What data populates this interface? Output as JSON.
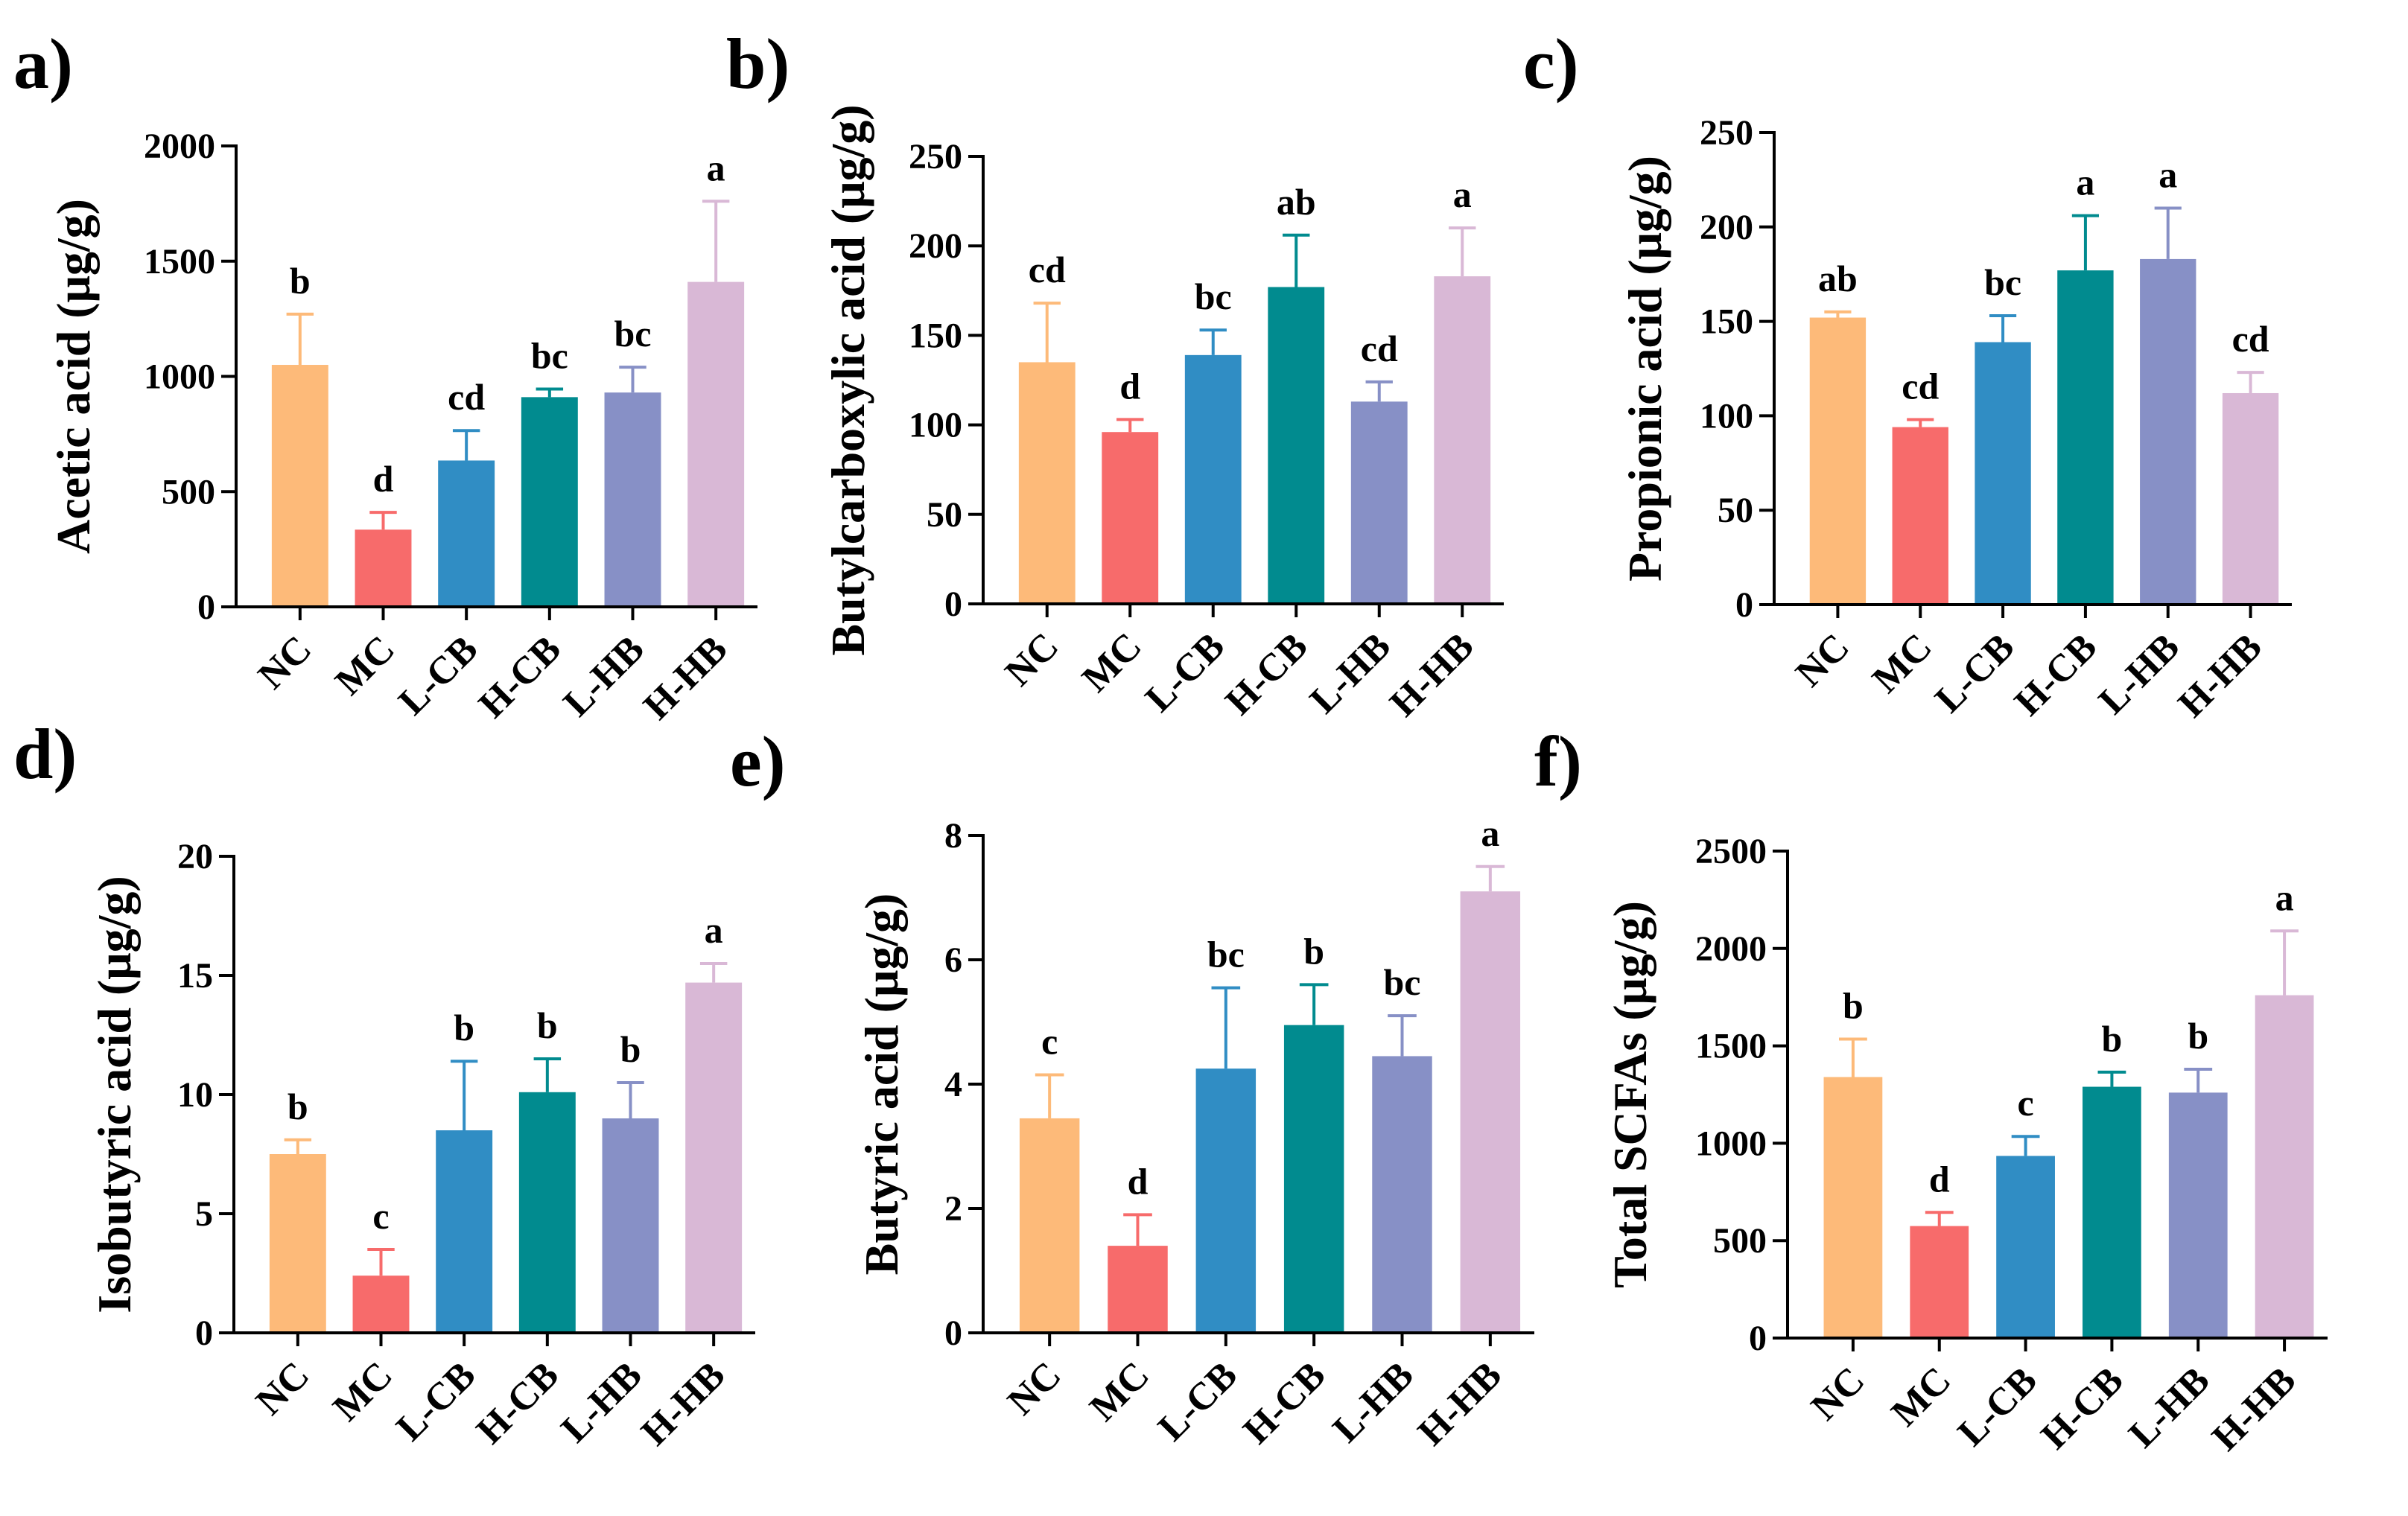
{
  "colors": {
    "NC": "#FDBA79",
    "MC": "#F76B6B",
    "L-CB": "#308DC4",
    "H-CB": "#018B8F",
    "L-HB": "#8790C6",
    "H-HB": "#D9B8D6",
    "axis": "#000000"
  },
  "chart_data": [
    {
      "type": "bar",
      "panel": "a)",
      "ylabel": "Acetic acid (μg/g)",
      "ylim": [
        0,
        2000
      ],
      "yticks": [
        0,
        500,
        1000,
        1500,
        2000
      ],
      "categories": [
        "NC",
        "MC",
        "L-CB",
        "H-CB",
        "L-HB",
        "H-HB"
      ],
      "values": [
        1050,
        335,
        635,
        910,
        930,
        1410
      ],
      "errors": [
        220,
        75,
        130,
        35,
        110,
        350
      ],
      "letters": [
        "b",
        "d",
        "cd",
        "bc",
        "bc",
        "a"
      ]
    },
    {
      "type": "bar",
      "panel": "b)",
      "ylabel": "Butylcarboxylic acid (μg/g)",
      "ylim": [
        0,
        250
      ],
      "yticks": [
        0,
        50,
        100,
        150,
        200,
        250
      ],
      "categories": [
        "NC",
        "MC",
        "L-CB",
        "H-CB",
        "L-HB",
        "H-HB"
      ],
      "values": [
        135,
        96,
        139,
        177,
        113,
        183
      ],
      "errors": [
        33,
        7,
        14,
        29,
        11,
        27
      ],
      "letters": [
        "cd",
        "d",
        "bc",
        "ab",
        "cd",
        "a"
      ]
    },
    {
      "type": "bar",
      "panel": "c)",
      "ylabel": "Propionic acid (μg/g)",
      "ylim": [
        0,
        250
      ],
      "yticks": [
        0,
        50,
        100,
        150,
        200,
        250
      ],
      "categories": [
        "NC",
        "MC",
        "L-CB",
        "H-CB",
        "L-HB",
        "H-HB"
      ],
      "values": [
        152,
        94,
        139,
        177,
        183,
        112
      ],
      "errors": [
        3,
        4,
        14,
        29,
        27,
        11
      ],
      "letters": [
        "ab",
        "cd",
        "bc",
        "a",
        "a",
        "cd"
      ]
    },
    {
      "type": "bar",
      "panel": "d)",
      "ylabel": "Isobutyric acid (μg/g)",
      "ylim": [
        0,
        20
      ],
      "yticks": [
        0,
        5,
        10,
        15,
        20
      ],
      "categories": [
        "NC",
        "MC",
        "L-CB",
        "H-CB",
        "L-HB",
        "H-HB"
      ],
      "values": [
        7.5,
        2.4,
        8.5,
        10.1,
        9.0,
        14.7
      ],
      "errors": [
        0.6,
        1.1,
        2.9,
        1.4,
        1.5,
        0.8
      ],
      "letters": [
        "b",
        "c",
        "b",
        "b",
        "b",
        "a"
      ]
    },
    {
      "type": "bar",
      "panel": "e)",
      "ylabel": "Butyric acid (μg/g)",
      "ylim": [
        0,
        8
      ],
      "yticks": [
        0,
        2,
        4,
        6,
        8
      ],
      "categories": [
        "NC",
        "MC",
        "L-CB",
        "H-CB",
        "L-HB",
        "H-HB"
      ],
      "values": [
        3.45,
        1.4,
        4.25,
        4.95,
        4.45,
        7.1
      ],
      "errors": [
        0.7,
        0.5,
        1.3,
        0.65,
        0.65,
        0.4
      ],
      "letters": [
        "c",
        "d",
        "bc",
        "b",
        "bc",
        "a"
      ]
    },
    {
      "type": "bar",
      "panel": "f)",
      "ylabel": "Total SCFAs (μg/g)",
      "ylim": [
        0,
        2500
      ],
      "yticks": [
        0,
        500,
        1000,
        1500,
        2000,
        2500
      ],
      "categories": [
        "NC",
        "MC",
        "L-CB",
        "H-CB",
        "L-HB",
        "H-HB"
      ],
      "values": [
        1340,
        575,
        935,
        1290,
        1260,
        1760
      ],
      "errors": [
        195,
        70,
        100,
        75,
        120,
        330
      ],
      "letters": [
        "b",
        "d",
        "c",
        "b",
        "b",
        "a"
      ]
    }
  ]
}
